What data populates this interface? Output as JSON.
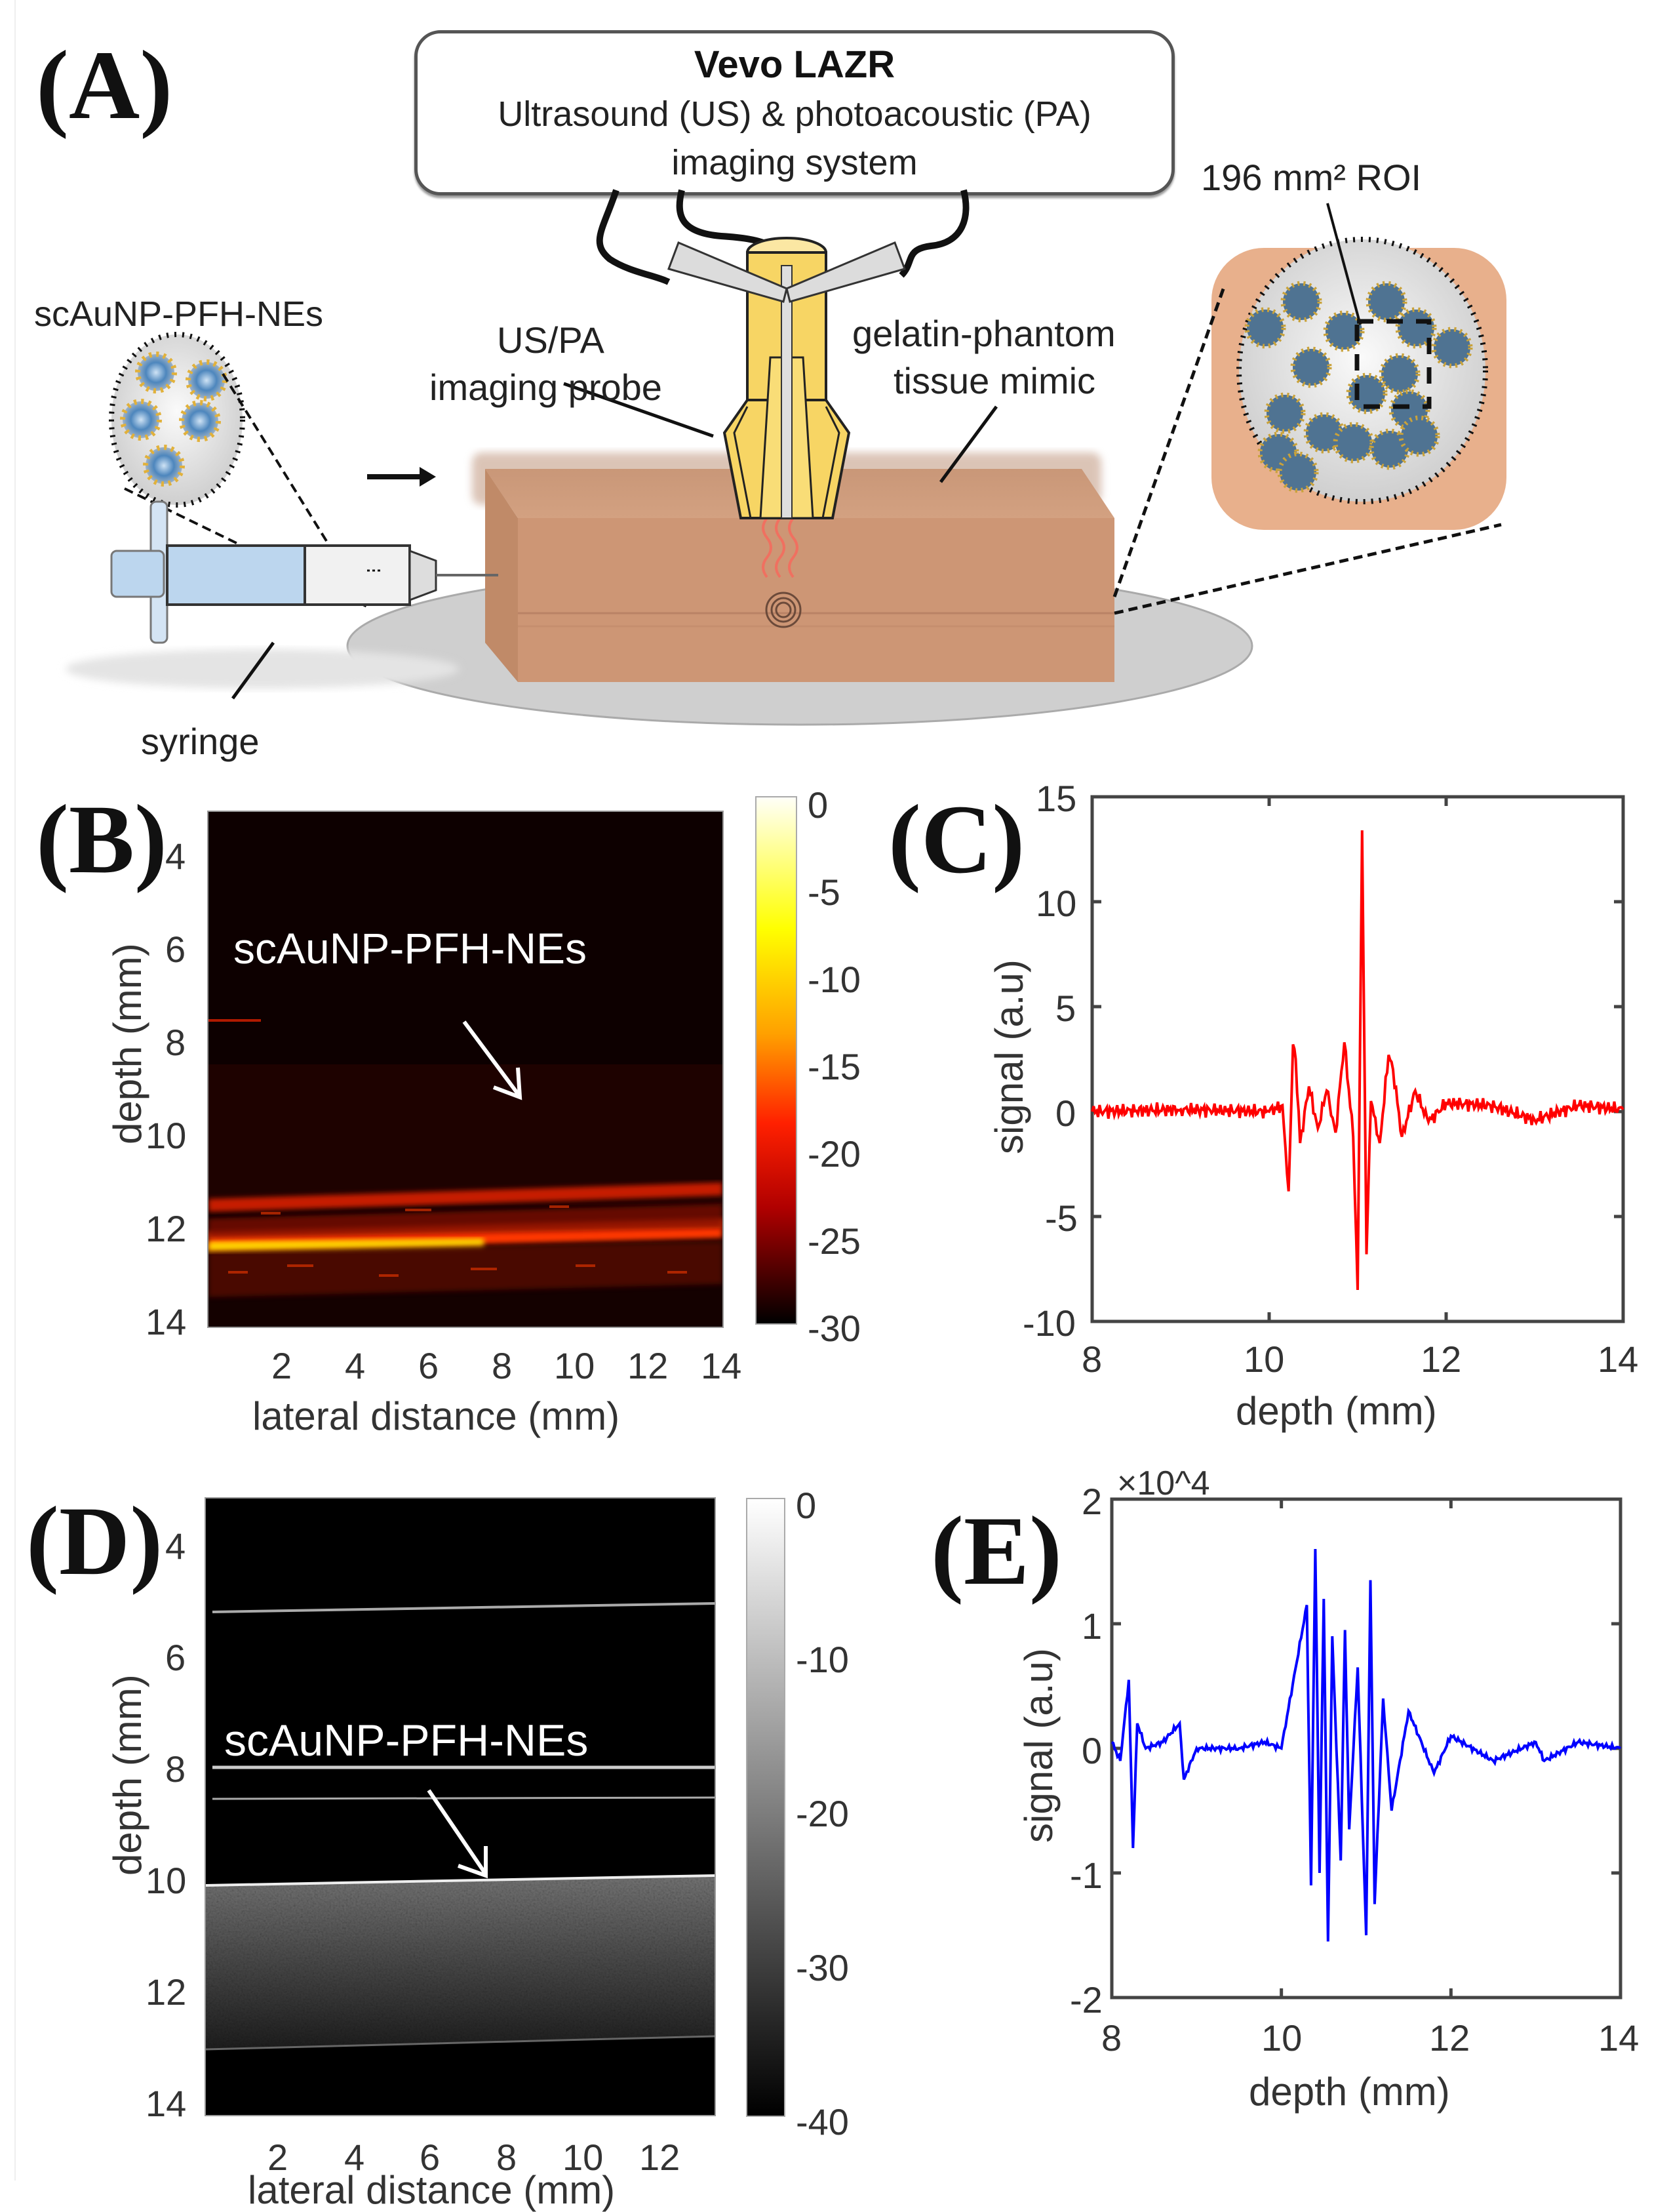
{
  "figure": {
    "panels": [
      "(A)",
      "(B)",
      "(C)",
      "(D)",
      "(E)"
    ]
  },
  "schematic": {
    "system_box": {
      "title": "Vevo LAZR",
      "line1": "Ultrasound (US) & photoacoustic (PA)",
      "line2": "imaging system"
    },
    "labels": {
      "nanoemulsion": "scAuNP-PFH-NEs",
      "probe_line1": "US/PA",
      "probe_line2": "imaging probe",
      "phantom_line1": "gelatin-phantom",
      "phantom_line2": "tissue mimic",
      "roi": "196 mm² ROI",
      "syringe": "syringe"
    },
    "colors": {
      "probe": "#f7d564",
      "phantom": "#c98f6a",
      "roi_bg": "#e8b08c",
      "plate": "#d9d9d9",
      "syringe_fluid": "#bcd6ee"
    }
  },
  "chart_data": [
    {
      "panel": "(B)",
      "type": "heatmap",
      "title": "",
      "annotation": "scAuNP-PFH-NEs",
      "xlabel": "lateral distance (mm)",
      "ylabel": "depth (mm)",
      "x_ticks": [
        "2",
        "4",
        "6",
        "8",
        "10",
        "12",
        "14"
      ],
      "y_ticks": [
        "4",
        "6",
        "8",
        "10",
        "12",
        "14"
      ],
      "xlim": [
        0,
        14
      ],
      "ylim": [
        14,
        3
      ],
      "colormap": "hot",
      "colorbar": {
        "ticks": [
          "0",
          "-5",
          "-10",
          "-15",
          "-20",
          "-25",
          "-30"
        ],
        "range": [
          -30,
          0
        ]
      },
      "features": [
        {
          "depth_mm": 10.3,
          "description": "upper bright band"
        },
        {
          "depth_mm": 11.0,
          "description": "brightest band (yellow/white)"
        },
        {
          "depth_mm": 8.1,
          "description": "faint short line at left edge"
        }
      ]
    },
    {
      "panel": "(C)",
      "type": "line",
      "color": "#ff0000",
      "xlabel": "depth (mm)",
      "ylabel": "signal (a.u)",
      "x_ticks": [
        "8",
        "10",
        "12",
        "14"
      ],
      "y_ticks": [
        "15",
        "10",
        "5",
        "0",
        "-5",
        "-10"
      ],
      "xlim": [
        8,
        14
      ],
      "ylim": [
        -10,
        15
      ],
      "x": [
        8.0,
        9.0,
        10.0,
        10.15,
        10.22,
        10.27,
        10.3,
        10.35,
        10.45,
        10.55,
        10.65,
        10.75,
        10.85,
        10.95,
        11.0,
        11.05,
        11.1,
        11.15,
        11.25,
        11.35,
        11.4,
        11.5,
        11.65,
        11.8,
        12.0,
        12.5,
        13.0,
        13.5,
        14.0
      ],
      "values": [
        0,
        0.1,
        0,
        0.3,
        -3.8,
        3.2,
        2.5,
        -1.5,
        1.2,
        -0.8,
        1.0,
        -1.0,
        3.3,
        -1.2,
        -8.5,
        13.4,
        -6.8,
        0.5,
        -1.5,
        2.7,
        2.0,
        -1.2,
        1.0,
        -0.5,
        0.4,
        0.3,
        -0.4,
        0.3,
        0.1
      ]
    },
    {
      "panel": "(D)",
      "type": "heatmap",
      "annotation": "scAuNP-PFH-NEs",
      "xlabel": "lateral distance (mm)",
      "ylabel": "depth (mm)",
      "x_ticks": [
        "2",
        "4",
        "6",
        "8",
        "10",
        "12"
      ],
      "y_ticks": [
        "4",
        "6",
        "8",
        "10",
        "12",
        "14"
      ],
      "xlim": [
        0,
        13.5
      ],
      "ylim": [
        15,
        3
      ],
      "colormap": "gray",
      "colorbar": {
        "ticks": [
          "0",
          "-10",
          "-20",
          "-30",
          "-40"
        ],
        "range": [
          -40,
          0
        ]
      },
      "features": [
        {
          "depth_mm": 5.1,
          "description": "thin horizontal line"
        },
        {
          "depth_mm": 8.2,
          "description": "thin horizontal line"
        },
        {
          "depth_mm": 8.8,
          "description": "thin horizontal line"
        },
        {
          "depth_mm": 10.4,
          "description": "top of speckled bright region"
        },
        {
          "depth_mm": 13.2,
          "description": "bottom line of speckled region"
        }
      ]
    },
    {
      "panel": "(E)",
      "type": "line",
      "color": "#0000ff",
      "xlabel": "depth (mm)",
      "ylabel": "signal (a.u)",
      "y_multiplier": "×10^4",
      "x_ticks": [
        "8",
        "10",
        "12",
        "14"
      ],
      "y_ticks": [
        "2",
        "1",
        "0",
        "-1",
        "-2"
      ],
      "xlim": [
        8,
        14
      ],
      "ylim": [
        -2,
        2
      ],
      "x": [
        8.0,
        8.1,
        8.2,
        8.25,
        8.3,
        8.4,
        8.6,
        8.8,
        8.85,
        9.0,
        9.5,
        9.8,
        10.0,
        10.3,
        10.35,
        10.4,
        10.45,
        10.5,
        10.55,
        10.6,
        10.7,
        10.75,
        10.8,
        10.9,
        11.0,
        11.05,
        11.1,
        11.2,
        11.3,
        11.5,
        11.8,
        12.0,
        12.5,
        13.0,
        13.1,
        13.5,
        14.0
      ],
      "values": [
        0.05,
        -0.1,
        0.55,
        -0.8,
        0.2,
        0,
        0.05,
        0.2,
        -0.25,
        0,
        0,
        0.05,
        0,
        1.15,
        -1.1,
        1.6,
        -1.0,
        1.2,
        -1.55,
        0.9,
        -0.9,
        0.95,
        -0.65,
        0.65,
        -1.5,
        1.35,
        -1.25,
        0.4,
        -0.5,
        0.3,
        -0.2,
        0.1,
        -0.1,
        0.05,
        -0.1,
        0.05,
        0
      ]
    }
  ]
}
